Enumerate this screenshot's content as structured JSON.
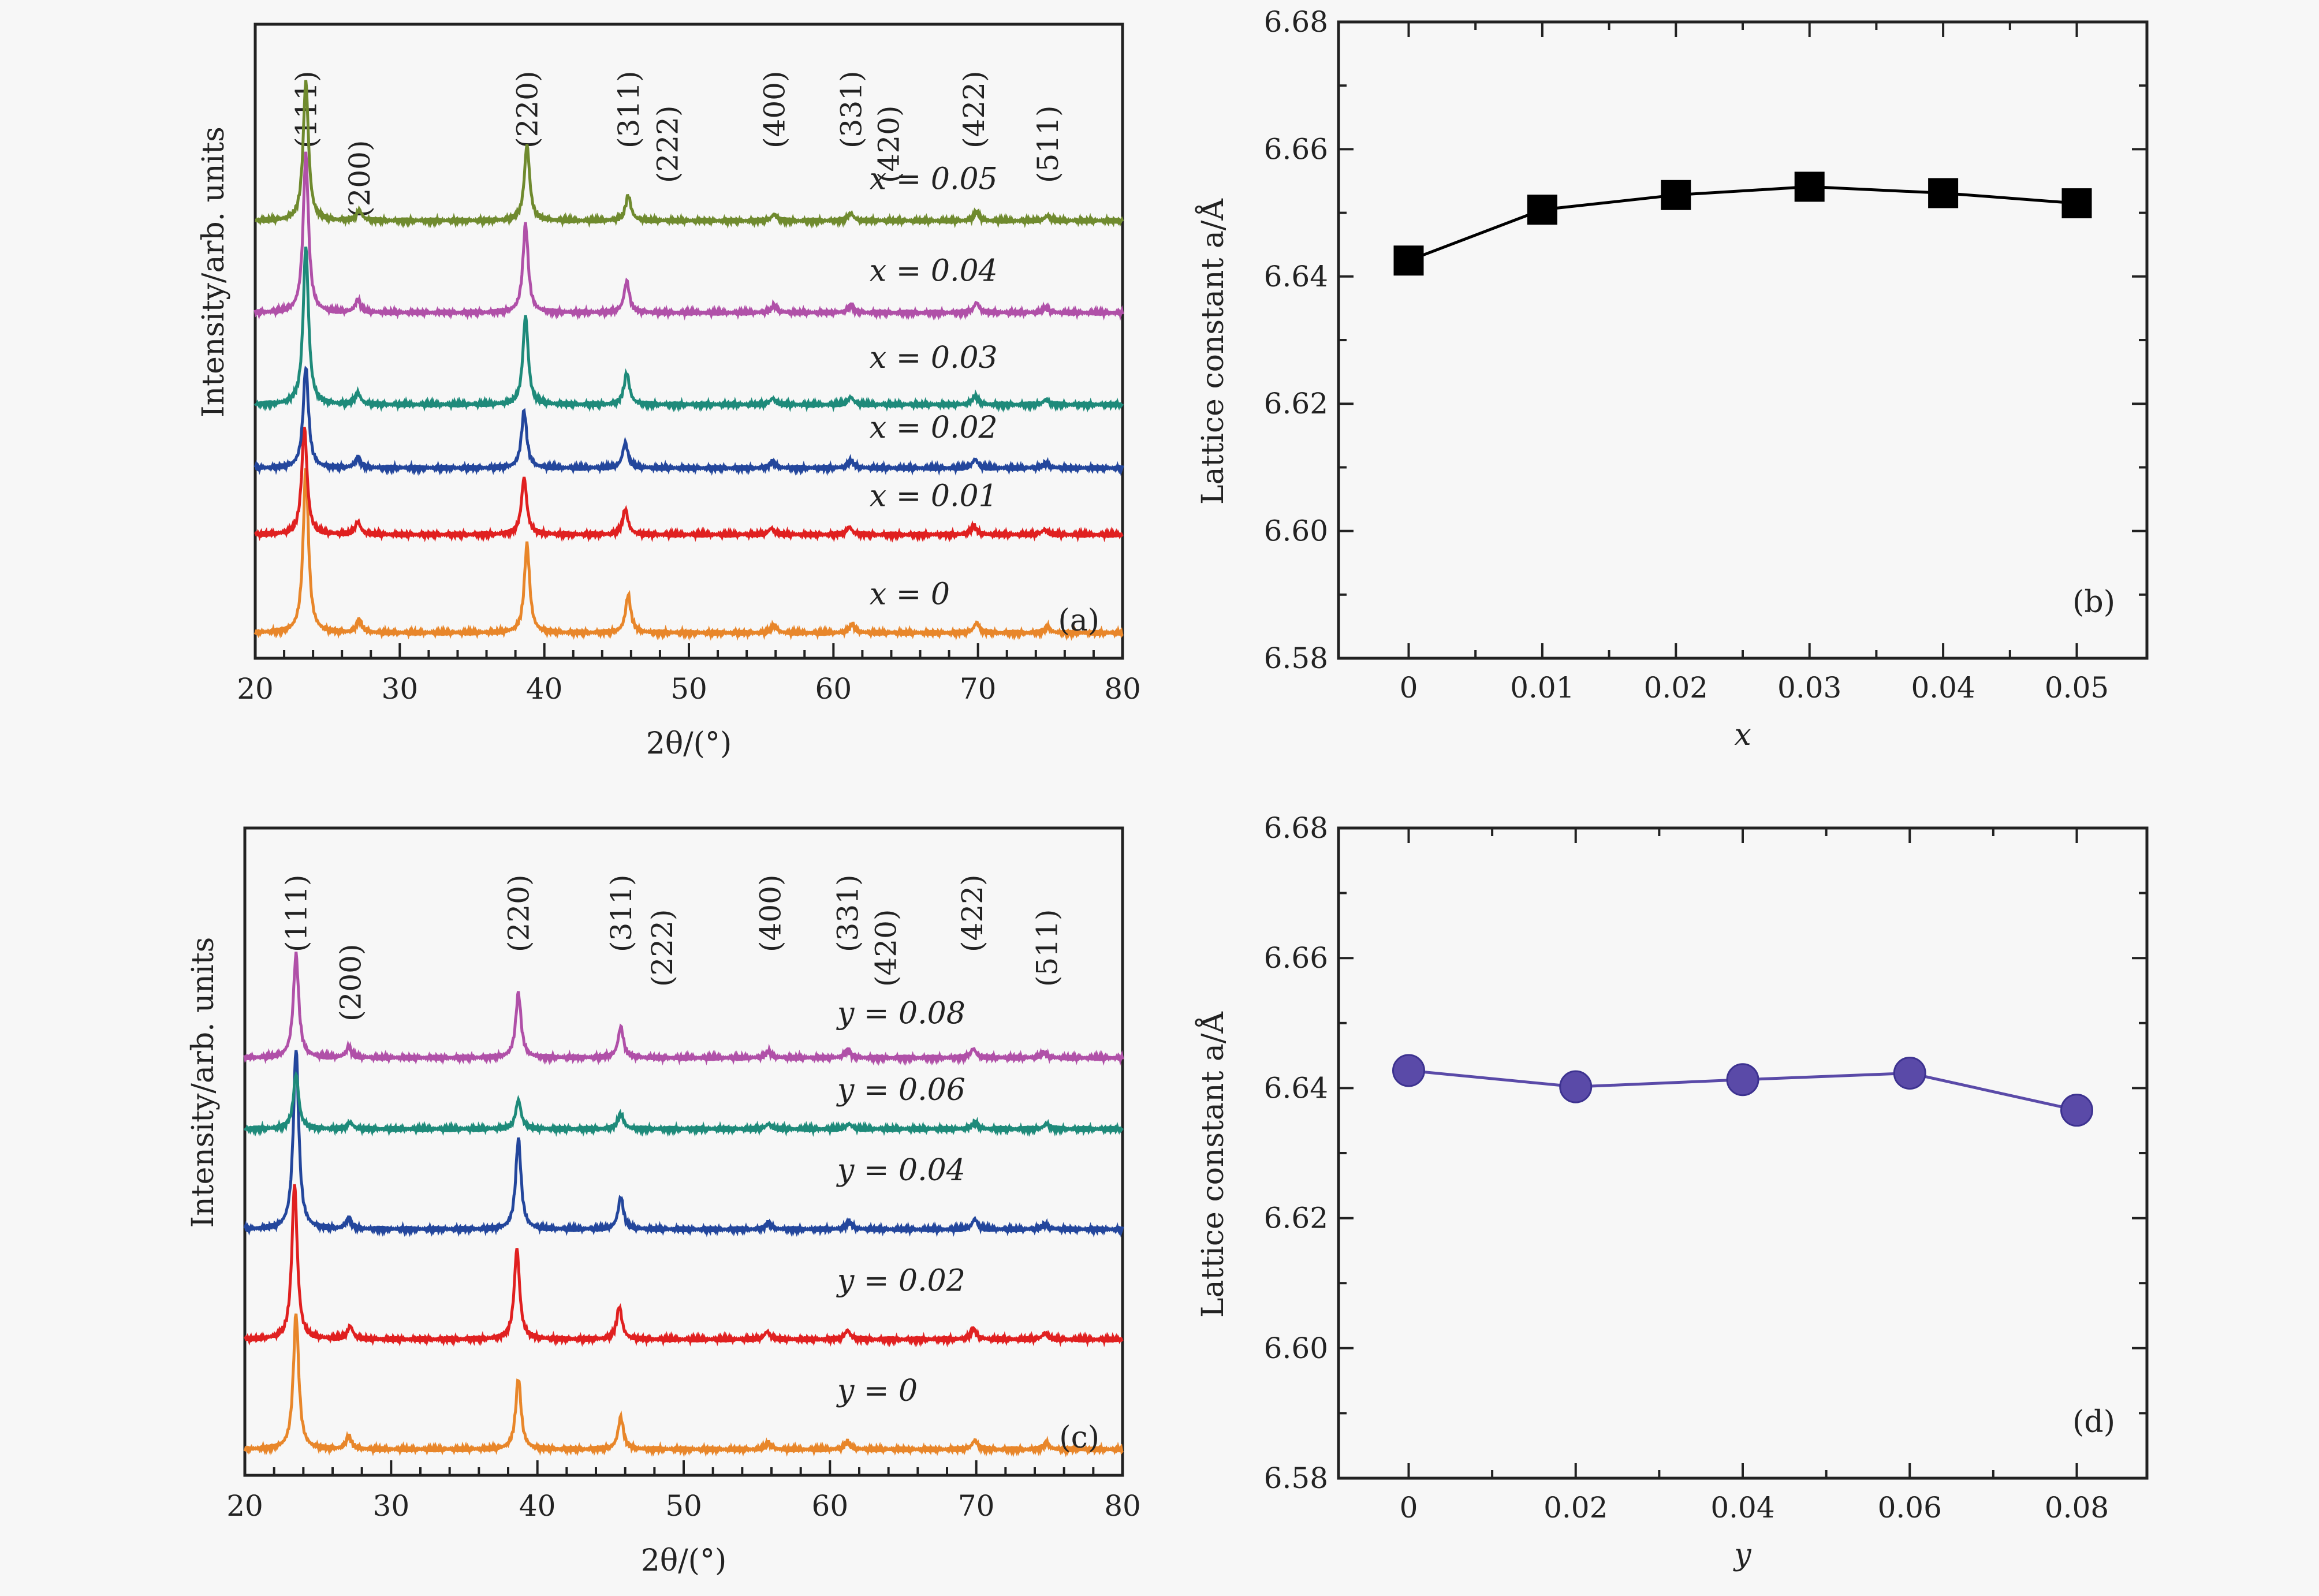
{
  "chart_data": [
    {
      "type": "line",
      "panel": "(a)",
      "xlabel": "2θ/(°)",
      "ylabel": "Intensity/arb. units",
      "xlim": [
        20,
        80
      ],
      "x_ticks": [
        "20",
        "30",
        "40",
        "50",
        "60",
        "70",
        "80"
      ],
      "peak_labels": [
        {
          "label": "(111)",
          "x": 23.5
        },
        {
          "label": "(200)",
          "x": 27.2
        },
        {
          "label": "(220)",
          "x": 38.8
        },
        {
          "label": "(311)",
          "x": 45.8
        },
        {
          "label": "(222)",
          "x": 48.5
        },
        {
          "label": "(400)",
          "x": 55.9
        },
        {
          "label": "(331)",
          "x": 61.2
        },
        {
          "label": "(420)",
          "x": 63.8
        },
        {
          "label": "(422)",
          "x": 69.7
        },
        {
          "label": "(511)",
          "x": 74.8
        }
      ],
      "series": [
        {
          "name": "x = 0",
          "color": "#e8862a",
          "baseline": 0.04,
          "label_pos": [
            62.5,
            0.085
          ],
          "peaks": [
            [
              23.5,
              0.26
            ],
            [
              27.2,
              0.02
            ],
            [
              38.8,
              0.14
            ],
            [
              45.8,
              0.06
            ],
            [
              55.9,
              0.012
            ],
            [
              61.3,
              0.014
            ],
            [
              69.9,
              0.016
            ],
            [
              74.8,
              0.01
            ]
          ]
        },
        {
          "name": "x = 0.01",
          "color": "#e02020",
          "baseline": 0.195,
          "label_pos": [
            62.5,
            0.24
          ],
          "peaks": [
            [
              23.4,
              0.17
            ],
            [
              27.1,
              0.02
            ],
            [
              38.6,
              0.09
            ],
            [
              45.6,
              0.04
            ],
            [
              55.7,
              0.01
            ],
            [
              61.1,
              0.012
            ],
            [
              69.7,
              0.014
            ],
            [
              74.6,
              0.008
            ]
          ]
        },
        {
          "name": "x = 0.02",
          "color": "#23469c",
          "baseline": 0.3,
          "label_pos": [
            62.5,
            0.348
          ],
          "peaks": [
            [
              23.5,
              0.16
            ],
            [
              27.1,
              0.016
            ],
            [
              38.6,
              0.09
            ],
            [
              45.6,
              0.04
            ],
            [
              55.8,
              0.01
            ],
            [
              61.2,
              0.012
            ],
            [
              69.8,
              0.014
            ],
            [
              74.7,
              0.008
            ]
          ]
        },
        {
          "name": "x = 0.03",
          "color": "#1e8a7a",
          "baseline": 0.4,
          "label_pos": [
            62.5,
            0.458
          ],
          "peaks": [
            [
              23.5,
              0.25
            ],
            [
              27.1,
              0.018
            ],
            [
              38.7,
              0.14
            ],
            [
              45.7,
              0.05
            ],
            [
              55.8,
              0.01
            ],
            [
              61.2,
              0.012
            ],
            [
              69.8,
              0.014
            ],
            [
              74.7,
              0.008
            ]
          ]
        },
        {
          "name": "x = 0.04",
          "color": "#b050a8",
          "baseline": 0.545,
          "label_pos": [
            62.5,
            0.595
          ],
          "peaks": [
            [
              23.5,
              0.25
            ],
            [
              27.1,
              0.02
            ],
            [
              38.7,
              0.14
            ],
            [
              45.7,
              0.05
            ],
            [
              55.9,
              0.012
            ],
            [
              61.2,
              0.012
            ],
            [
              69.9,
              0.016
            ],
            [
              74.7,
              0.008
            ]
          ]
        },
        {
          "name": "x = 0.05",
          "color": "#6f8a2e",
          "baseline": 0.69,
          "label_pos": [
            62.5,
            0.74
          ],
          "peaks": [
            [
              23.5,
              0.22
            ],
            [
              27.2,
              0.016
            ],
            [
              38.8,
              0.12
            ],
            [
              45.8,
              0.04
            ],
            [
              55.9,
              0.01
            ],
            [
              61.2,
              0.012
            ],
            [
              69.9,
              0.014
            ],
            [
              74.8,
              0.008
            ]
          ]
        }
      ]
    },
    {
      "type": "line",
      "panel": "(b)",
      "xlabel": "x",
      "ylabel": "Lattice constant a/Å",
      "categories": [
        "0",
        "0.01",
        "0.02",
        "0.03",
        "0.04",
        "0.05"
      ],
      "x": [
        0,
        0.01,
        0.02,
        0.03,
        0.04,
        0.05
      ],
      "values": [
        6.6425,
        6.6505,
        6.6528,
        6.6541,
        6.6531,
        6.6515
      ],
      "ylim": [
        6.58,
        6.68
      ],
      "y_ticks": [
        "6.58",
        "6.60",
        "6.62",
        "6.64",
        "6.66",
        "6.68"
      ],
      "marker": "square",
      "color": "#000000"
    },
    {
      "type": "line",
      "panel": "(c)",
      "xlabel": "2θ/(°)",
      "ylabel": "Intensity/arb. units",
      "xlim": [
        20,
        80
      ],
      "x_ticks": [
        "20",
        "30",
        "40",
        "50",
        "60",
        "70",
        "80"
      ],
      "peak_labels": [
        {
          "label": "(111)",
          "x": 23.5
        },
        {
          "label": "(200)",
          "x": 27.2
        },
        {
          "label": "(220)",
          "x": 38.7
        },
        {
          "label": "(311)",
          "x": 45.7
        },
        {
          "label": "(222)",
          "x": 48.5
        },
        {
          "label": "(400)",
          "x": 55.9
        },
        {
          "label": "(331)",
          "x": 61.2
        },
        {
          "label": "(420)",
          "x": 63.8
        },
        {
          "label": "(422)",
          "x": 69.7
        },
        {
          "label": "(511)",
          "x": 74.8
        }
      ],
      "series": [
        {
          "name": "y = 0",
          "color": "#e8862a",
          "baseline": 0.04,
          "label_pos": [
            60.5,
            0.115
          ],
          "peaks": [
            [
              23.5,
              0.21
            ],
            [
              27.1,
              0.02
            ],
            [
              38.7,
              0.11
            ],
            [
              45.7,
              0.05
            ],
            [
              55.8,
              0.01
            ],
            [
              61.2,
              0.012
            ],
            [
              69.9,
              0.014
            ],
            [
              74.8,
              0.01
            ]
          ]
        },
        {
          "name": "y = 0.02",
          "color": "#e02020",
          "baseline": 0.21,
          "label_pos": [
            60.5,
            0.285
          ],
          "peaks": [
            [
              23.4,
              0.24
            ],
            [
              27.2,
              0.02
            ],
            [
              38.6,
              0.14
            ],
            [
              45.6,
              0.05
            ],
            [
              55.7,
              0.012
            ],
            [
              61.2,
              0.014
            ],
            [
              69.8,
              0.016
            ],
            [
              74.7,
              0.01
            ]
          ]
        },
        {
          "name": "y = 0.04",
          "color": "#23469c",
          "baseline": 0.38,
          "label_pos": [
            60.5,
            0.456
          ],
          "peaks": [
            [
              23.5,
              0.28
            ],
            [
              27.1,
              0.016
            ],
            [
              38.7,
              0.14
            ],
            [
              45.7,
              0.05
            ],
            [
              55.8,
              0.01
            ],
            [
              61.3,
              0.012
            ],
            [
              69.9,
              0.016
            ],
            [
              74.7,
              0.008
            ]
          ]
        },
        {
          "name": "y = 0.06",
          "color": "#1e8a7a",
          "baseline": 0.535,
          "label_pos": [
            60.5,
            0.58
          ],
          "peaks": [
            [
              23.5,
              0.085
            ],
            [
              27.2,
              0.01
            ],
            [
              38.7,
              0.045
            ],
            [
              45.7,
              0.024
            ],
            [
              55.8,
              0.008
            ],
            [
              61.3,
              0.008
            ],
            [
              69.9,
              0.01
            ],
            [
              74.8,
              0.008
            ]
          ]
        },
        {
          "name": "y = 0.08",
          "color": "#b050a8",
          "baseline": 0.645,
          "label_pos": [
            60.5,
            0.698
          ],
          "peaks": [
            [
              23.5,
              0.16
            ],
            [
              27.1,
              0.016
            ],
            [
              38.7,
              0.1
            ],
            [
              45.7,
              0.048
            ],
            [
              55.8,
              0.01
            ],
            [
              61.2,
              0.012
            ],
            [
              69.8,
              0.014
            ],
            [
              74.6,
              0.008
            ]
          ]
        }
      ]
    },
    {
      "type": "line",
      "panel": "(d)",
      "xlabel": "y",
      "ylabel": "Lattice constant a/Å",
      "categories": [
        "0",
        "0.02",
        "0.04",
        "0.06",
        "0.08"
      ],
      "x": [
        0,
        0.02,
        0.04,
        0.06,
        0.08
      ],
      "values": [
        6.6427,
        6.6402,
        6.6413,
        6.6423,
        6.6366
      ],
      "ylim": [
        6.58,
        6.68
      ],
      "y_ticks": [
        "6.58",
        "6.60",
        "6.62",
        "6.64",
        "6.66",
        "6.68"
      ],
      "marker": "circle",
      "color": "#5a4aa8"
    }
  ]
}
